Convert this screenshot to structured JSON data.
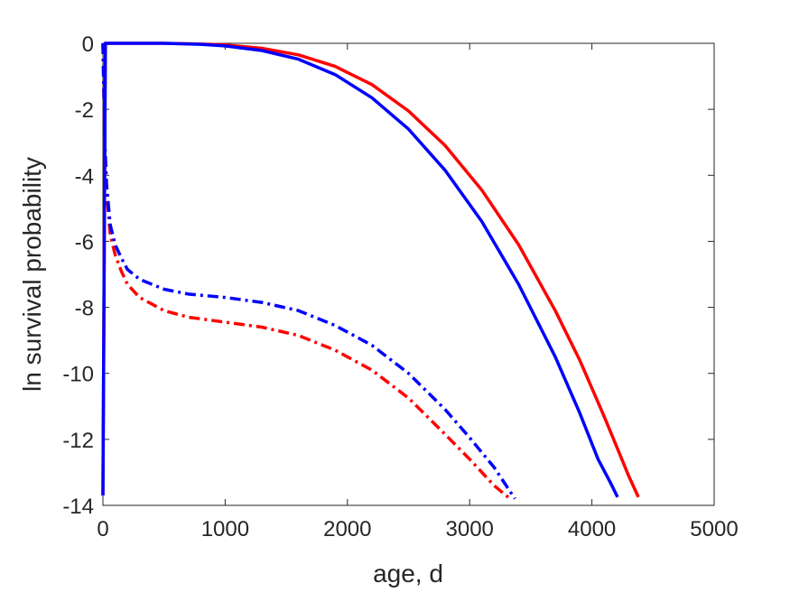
{
  "chart_data": {
    "type": "line",
    "title": "",
    "xlabel": "age, d",
    "ylabel": "ln survival probability",
    "xlim": [
      0,
      5000
    ],
    "ylim": [
      -14,
      0
    ],
    "xticks": [
      0,
      1000,
      2000,
      3000,
      4000,
      5000
    ],
    "yticks": [
      0,
      -2,
      -4,
      -6,
      -8,
      -10,
      -12,
      -14
    ],
    "grid": false,
    "legend": "none",
    "series": [
      {
        "color": "#ff0000",
        "style": "solid",
        "x": [
          0,
          20,
          200,
          500,
          800,
          1000,
          1300,
          1600,
          1900,
          2200,
          2500,
          2800,
          3100,
          3400,
          3700,
          3900,
          4100,
          4200,
          4300,
          4380
        ],
        "y": [
          -13.7,
          0,
          0,
          0,
          -0.02,
          -0.05,
          -0.15,
          -0.35,
          -0.7,
          -1.25,
          -2.05,
          -3.1,
          -4.45,
          -6.1,
          -8.1,
          -9.6,
          -11.3,
          -12.2,
          -13.1,
          -13.75
        ]
      },
      {
        "color": "#0000ff",
        "style": "solid",
        "x": [
          0,
          20,
          200,
          500,
          800,
          1000,
          1300,
          1600,
          1900,
          2200,
          2500,
          2800,
          3100,
          3400,
          3700,
          3900,
          4050,
          4150,
          4210
        ],
        "y": [
          -13.7,
          0,
          0,
          0,
          -0.03,
          -0.08,
          -0.22,
          -0.48,
          -0.95,
          -1.65,
          -2.6,
          -3.85,
          -5.4,
          -7.3,
          -9.5,
          -11.2,
          -12.6,
          -13.3,
          -13.75
        ]
      },
      {
        "color": "#ff0000",
        "style": "dash-dot",
        "x": [
          0,
          15,
          30,
          60,
          100,
          150,
          200,
          300,
          500,
          700,
          1000,
          1300,
          1600,
          1900,
          2200,
          2500,
          2800,
          3000,
          3200,
          3330
        ],
        "y": [
          0,
          -3.0,
          -4.5,
          -5.8,
          -6.4,
          -6.9,
          -7.3,
          -7.7,
          -8.1,
          -8.3,
          -8.45,
          -8.6,
          -8.85,
          -9.3,
          -9.9,
          -10.75,
          -11.85,
          -12.6,
          -13.4,
          -13.8
        ]
      },
      {
        "color": "#0000ff",
        "style": "dash-dot",
        "x": [
          0,
          15,
          30,
          60,
          100,
          150,
          200,
          300,
          500,
          700,
          1000,
          1300,
          1600,
          1900,
          2200,
          2500,
          2800,
          3000,
          3200,
          3370
        ],
        "y": [
          0,
          -2.9,
          -4.3,
          -5.5,
          -6.1,
          -6.5,
          -6.85,
          -7.15,
          -7.45,
          -7.6,
          -7.7,
          -7.85,
          -8.1,
          -8.55,
          -9.15,
          -10.0,
          -11.1,
          -11.95,
          -12.85,
          -13.8
        ]
      }
    ]
  }
}
